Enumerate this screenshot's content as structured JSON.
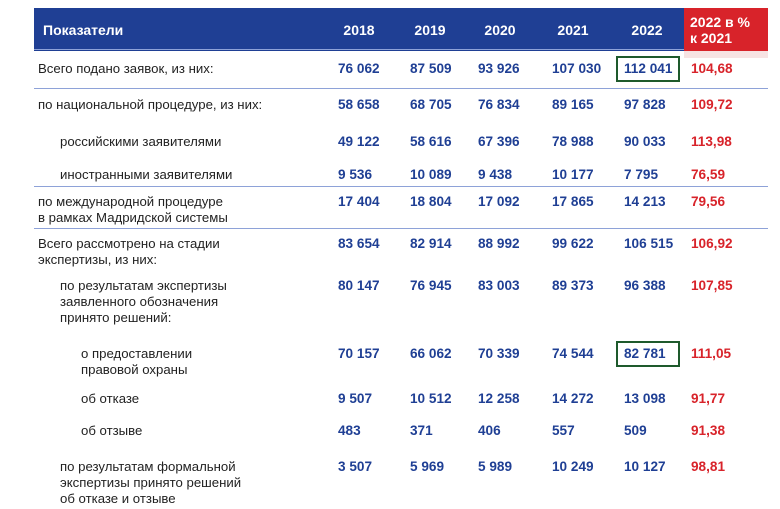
{
  "header": {
    "name": "Показатели",
    "years": [
      "2018",
      "2019",
      "2020",
      "2021",
      "2022"
    ],
    "pct_line1": "2022 в %",
    "pct_line2": "к 2021"
  },
  "rows": [
    {
      "label": [
        "Всего подано заявок, из них:"
      ],
      "values": [
        "76 062",
        "87 509",
        "93 926",
        "107 030",
        "112 041"
      ],
      "pct": "104,68"
    },
    {
      "label": [
        "по национальной процедуре, из них:"
      ],
      "values": [
        "58 658",
        "68 705",
        "76 834",
        "89 165",
        "97 828"
      ],
      "pct": "109,72"
    },
    {
      "label": [
        "российскими заявителями"
      ],
      "values": [
        "49 122",
        "58 616",
        "67 396",
        "78 988",
        "90 033"
      ],
      "pct": "113,98"
    },
    {
      "label": [
        "иностранными заявителями"
      ],
      "values": [
        "9 536",
        "10 089",
        "9 438",
        "10 177",
        "7 795"
      ],
      "pct": "76,59"
    },
    {
      "label": [
        "по международной процедуре",
        "в рамках Мадридской системы"
      ],
      "values": [
        "17 404",
        "18 804",
        "17 092",
        "17 865",
        "14 213"
      ],
      "pct": "79,56"
    },
    {
      "label": [
        "Всего рассмотрено на стадии",
        "экспертизы, из них:"
      ],
      "values": [
        "83 654",
        "82 914",
        "88 992",
        "99 622",
        "106 515"
      ],
      "pct": "106,92"
    },
    {
      "label": [
        "по результатам экспертизы",
        "заявленного обозначения",
        "принято решений:"
      ],
      "values": [
        "80 147",
        "76 945",
        "83 003",
        "89 373",
        "96 388"
      ],
      "pct": "107,85"
    },
    {
      "label": [
        "о предоставлении",
        "правовой охраны"
      ],
      "values": [
        "70 157",
        "66 062",
        "70 339",
        "74 544",
        "82 781"
      ],
      "pct": "111,05"
    },
    {
      "label": [
        "об отказе"
      ],
      "values": [
        "9 507",
        "10 512",
        "12 258",
        "14 272",
        "13 098"
      ],
      "pct": "91,77"
    },
    {
      "label": [
        "об отзыве"
      ],
      "values": [
        "483",
        "371",
        "406",
        "557",
        "509"
      ],
      "pct": "91,38"
    },
    {
      "label": [
        "по результатам формальной",
        "экспертизы принято решений",
        "об отказе и отзыве"
      ],
      "values": [
        "3 507",
        "5 969",
        "5 989",
        "10 249",
        "10 127"
      ],
      "pct": "98,81"
    }
  ]
}
